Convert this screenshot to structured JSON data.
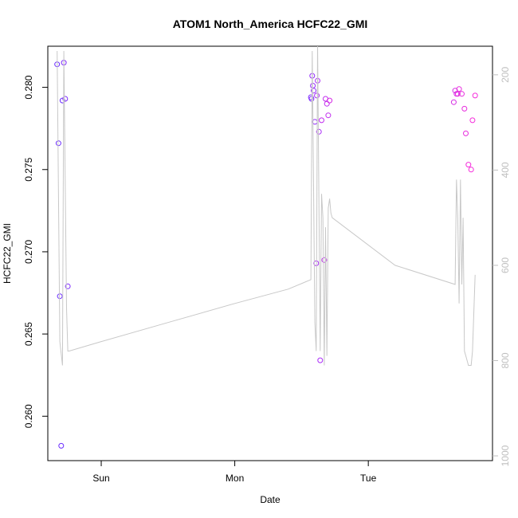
{
  "chart_data": {
    "type": "scatter",
    "title": "ATOM1 North_America HCFC22_GMI",
    "xlabel": "Date",
    "ylabel": "HCFC22_GMI",
    "x_ticks": [
      {
        "day": 1,
        "label": "Sun"
      },
      {
        "day": 2,
        "label": "Mon"
      },
      {
        "day": 3,
        "label": "Tue"
      }
    ],
    "xlim": [
      0.6,
      3.93
    ],
    "ylim": [
      0.2573,
      0.2825
    ],
    "y_ticks": [
      0.26,
      0.265,
      0.27,
      0.275,
      0.28
    ],
    "y_tick_labels": [
      "0.260",
      "0.265",
      "0.270",
      "0.275",
      "0.280"
    ],
    "y2lim": [
      1010,
      140
    ],
    "y2_ticks": [
      200,
      400,
      600,
      800,
      1000
    ],
    "y2_tick_labels": [
      "200",
      "400",
      "600",
      "800",
      "1000"
    ],
    "box": true,
    "grid": false,
    "series": [
      {
        "kind": "points",
        "axis": "left",
        "colors": [
          "#6a2bff",
          "#7f2bff",
          "#952bff",
          "#aa2bf8",
          "#c02bee",
          "#d52be4",
          "#e82bde",
          "#f52bdb"
        ],
        "x": [
          0.67,
          0.68,
          0.69,
          0.7,
          0.71,
          0.72,
          0.73,
          0.75,
          2.57,
          2.575,
          2.58,
          2.585,
          2.59,
          2.6,
          2.61,
          2.615,
          2.62,
          2.63,
          2.64,
          2.65,
          2.67,
          2.68,
          2.69,
          2.7,
          2.71,
          3.64,
          3.65,
          3.66,
          3.67,
          3.68,
          3.7,
          3.72,
          3.73,
          3.75,
          3.77,
          3.78,
          3.8
        ],
        "y": [
          0.2814,
          0.2766,
          0.2673,
          0.2582,
          0.2792,
          0.2815,
          0.2793,
          0.2679,
          0.2794,
          0.2793,
          0.2807,
          0.2801,
          0.2798,
          0.2779,
          0.2693,
          0.2795,
          0.2804,
          0.2773,
          0.2634,
          0.278,
          0.2695,
          0.2793,
          0.279,
          0.2783,
          0.2792,
          0.2791,
          0.2798,
          0.2796,
          0.2796,
          0.2799,
          0.2796,
          0.2787,
          0.2772,
          0.2753,
          0.275,
          0.278,
          0.2795
        ]
      },
      {
        "kind": "line",
        "axis": "right",
        "color": "#c8c8c8",
        "x": [
          0.67,
          0.69,
          0.71,
          0.72,
          0.74,
          0.75,
          0.76,
          1.0,
          1.5,
          2.0,
          2.4,
          2.57,
          2.58,
          2.59,
          2.6,
          2.61,
          2.62,
          2.63,
          2.64,
          2.65,
          2.66,
          2.67,
          2.68,
          2.69,
          2.7,
          2.71,
          2.72,
          2.73,
          3.2,
          3.65,
          3.66,
          3.67,
          3.68,
          3.69,
          3.7,
          3.71,
          3.72,
          3.73,
          3.75,
          3.77,
          3.78,
          3.8
        ],
        "y": [
          150,
          760,
          810,
          150,
          690,
          780,
          780,
          760,
          720,
          680,
          650,
          630,
          150,
          440,
          720,
          780,
          130,
          470,
          780,
          450,
          500,
          810,
          520,
          790,
          480,
          460,
          490,
          500,
          600,
          640,
          420,
          500,
          680,
          420,
          640,
          500,
          780,
          790,
          810,
          810,
          780,
          620
        ]
      }
    ]
  }
}
